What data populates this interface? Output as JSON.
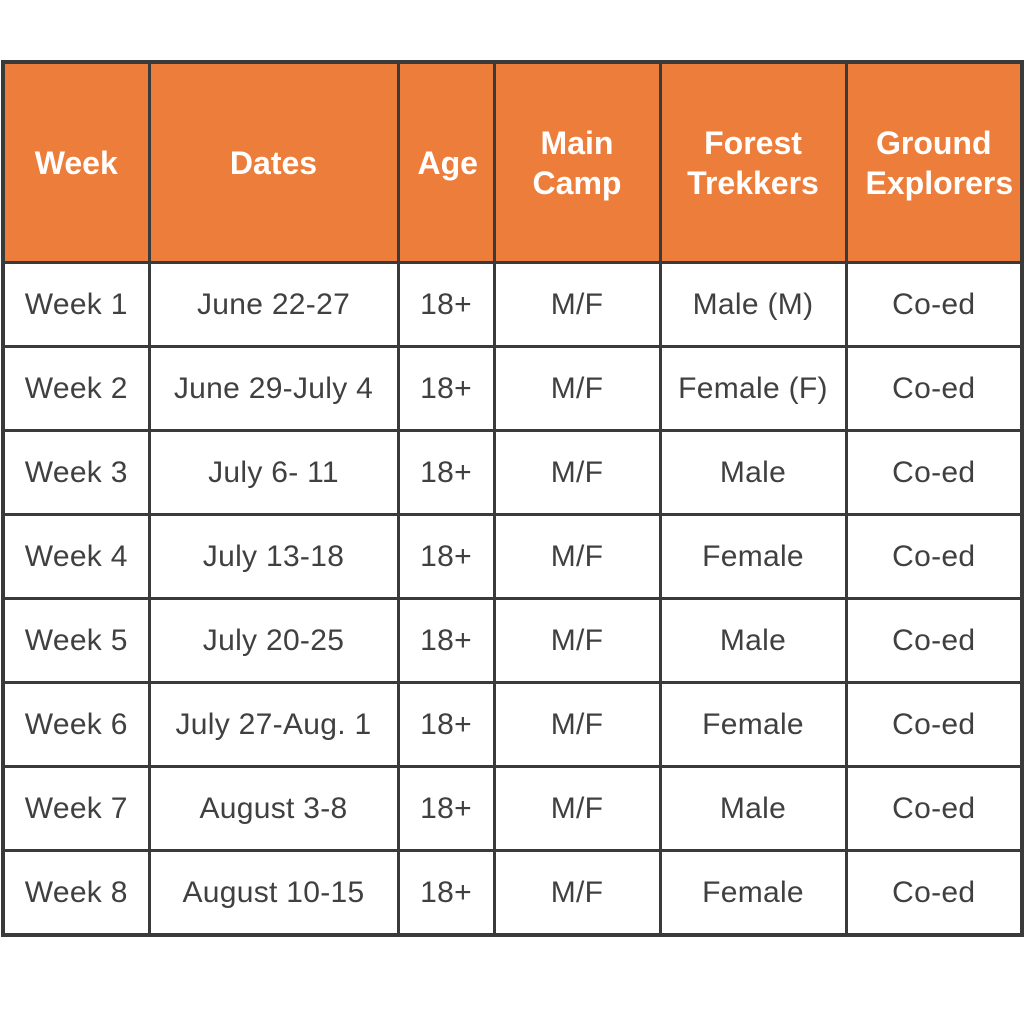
{
  "chart_data": {
    "type": "table",
    "title": "",
    "columns": [
      "Week",
      "Dates",
      "Age",
      "Main Camp",
      "Forest Trekkers",
      "Ground Explorers"
    ],
    "rows": [
      [
        "Week 1",
        "June 22-27",
        "18+",
        "M/F",
        "Male (M)",
        "Co-ed"
      ],
      [
        "Week 2",
        "June 29-July 4",
        "18+",
        "M/F",
        "Female (F)",
        "Co-ed"
      ],
      [
        "Week 3",
        "July 6- 11",
        "18+",
        "M/F",
        "Male",
        "Co-ed"
      ],
      [
        "Week 4",
        "July 13-18",
        "18+",
        "M/F",
        "Female",
        "Co-ed"
      ],
      [
        "Week 5",
        "July 20-25",
        "18+",
        "M/F",
        "Male",
        "Co-ed"
      ],
      [
        "Week 6",
        "July 27-Aug. 1",
        "18+",
        "M/F",
        "Female",
        "Co-ed"
      ],
      [
        "Week 7",
        "August 3-8",
        "18+",
        "M/F",
        "Male",
        "Co-ed"
      ],
      [
        "Week 8",
        "August 10-15",
        "18+",
        "M/F",
        "Female",
        "Co-ed"
      ]
    ]
  },
  "colors": {
    "header_bg": "#ED7D3A",
    "header_text": "#FFFFFF",
    "border": "#3A3A3A",
    "body_text": "#404040",
    "page_bg": "#FFFFFF"
  }
}
